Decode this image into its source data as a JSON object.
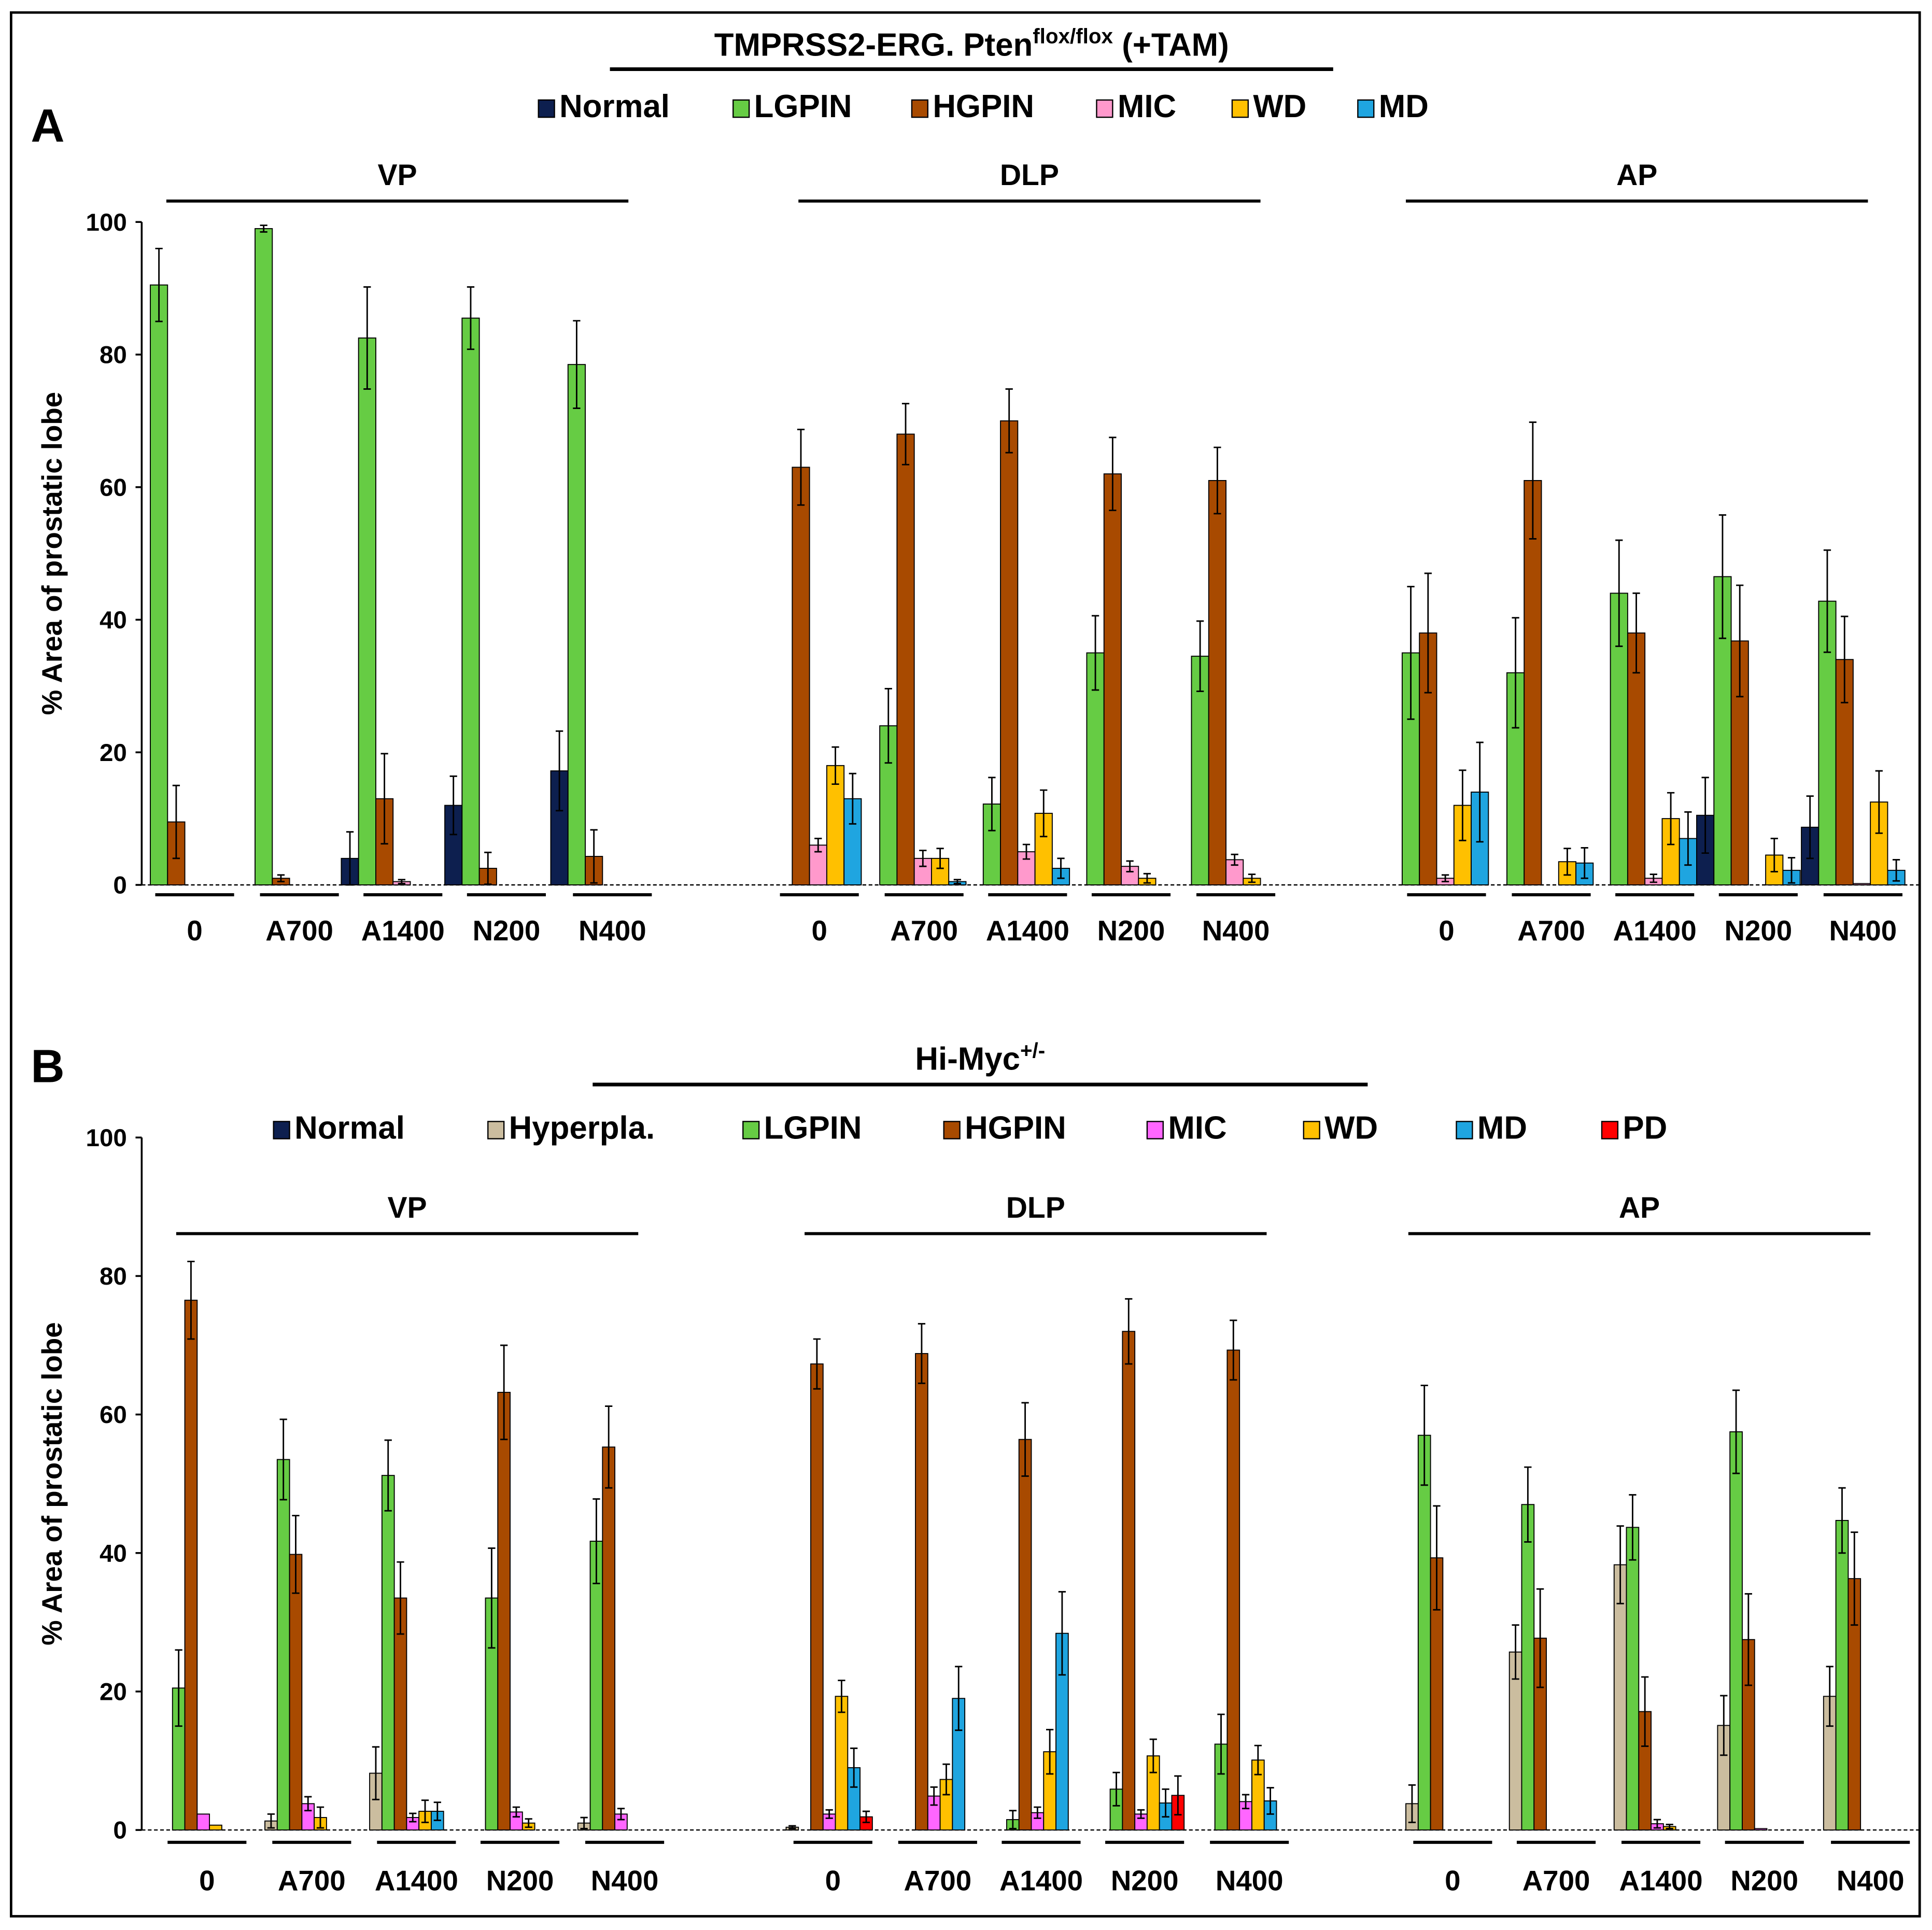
{
  "colors": {
    "Normal": "#0d1f4f",
    "Hyperpla.": "#cbbd9f",
    "LGPIN": "#66cc44",
    "HGPIN": "#a84a00",
    "MIC_A": "#ff99cc",
    "MIC_B": "#ff66ff",
    "WD": "#ffc000",
    "MD": "#1fa5e0",
    "PD": "#ff0000"
  },
  "chart_data": [
    {
      "type": "bar",
      "panel": "A",
      "title_main": "TMPRSS2-ERG. Pten",
      "title_sup": "flox/flox",
      "title_tail": " (+TAM)",
      "ylabel": "% Area of prostatic lobe",
      "ylim": [
        0,
        100
      ],
      "yticks": [
        "0",
        "20",
        "40",
        "60",
        "80",
        "100"
      ],
      "legend": [
        "Normal",
        "LGPIN",
        "HGPIN",
        "MIC",
        "WD",
        "MD"
      ],
      "categories": [
        "0",
        "A700",
        "A1400",
        "N200",
        "N400"
      ],
      "lobes": [
        {
          "name": "VP",
          "values": [
            [
              0,
              90.5,
              9.5,
              0,
              0,
              0
            ],
            [
              0,
              99,
              1,
              0,
              0,
              0
            ],
            [
              4,
              82.5,
              13,
              0.5,
              0,
              0
            ],
            [
              12,
              85.5,
              2.5,
              0,
              0,
              0
            ],
            [
              17.2,
              78.5,
              4.3,
              0,
              0,
              0
            ]
          ],
          "errors": [
            [
              0,
              5.5,
              5.5,
              0,
              0,
              0
            ],
            [
              0,
              0.5,
              0.5,
              0,
              0,
              0
            ],
            [
              4,
              7.7,
              6.8,
              0.3,
              0,
              0
            ],
            [
              4.4,
              4.7,
              2.4,
              0,
              0,
              0
            ],
            [
              6,
              6.6,
              4,
              0,
              0,
              0
            ]
          ]
        },
        {
          "name": "DLP",
          "values": [
            [
              0,
              0,
              63,
              6,
              18,
              13
            ],
            [
              0,
              24,
              68,
              4,
              4,
              0.5
            ],
            [
              0,
              12.2,
              70,
              5,
              10.8,
              2.5
            ],
            [
              0,
              35,
              62,
              2.8,
              1,
              0
            ],
            [
              0,
              34.5,
              61,
              3.8,
              1,
              0
            ]
          ],
          "errors": [
            [
              0,
              0,
              5.7,
              1,
              2.8,
              3.8
            ],
            [
              0,
              5.6,
              4.6,
              1.2,
              1.5,
              0.3
            ],
            [
              0,
              4,
              4.8,
              1.1,
              3.5,
              1.5
            ],
            [
              0,
              5.6,
              5.5,
              0.8,
              0.7,
              0
            ],
            [
              0,
              5.3,
              5,
              0.8,
              0.6,
              0
            ]
          ]
        },
        {
          "name": "AP",
          "values": [
            [
              0,
              35,
              38,
              1,
              12,
              14
            ],
            [
              0,
              32,
              61,
              0,
              3.5,
              3.3
            ],
            [
              0,
              44,
              38,
              1,
              10,
              7
            ],
            [
              10.5,
              46.5,
              36.8,
              0,
              4.5,
              2.2
            ],
            [
              8.7,
              42.8,
              34,
              0.2,
              12.5,
              2.2
            ]
          ],
          "errors": [
            [
              0,
              10,
              9,
              0.5,
              5.3,
              7.5
            ],
            [
              0,
              8.3,
              8.8,
              0,
              2,
              2.3
            ],
            [
              0,
              8,
              6,
              0.6,
              3.9,
              4
            ],
            [
              5.7,
              9.3,
              8.4,
              0,
              2.5,
              1.9
            ],
            [
              4.7,
              7.7,
              6.5,
              0,
              4.7,
              1.6
            ]
          ]
        }
      ]
    },
    {
      "type": "bar",
      "panel": "B",
      "title_main": "Hi-Myc",
      "title_sup": "+/-",
      "title_tail": "",
      "ylabel": "% Area of prostatic lobe",
      "ylim": [
        0,
        100
      ],
      "yticks": [
        "0",
        "20",
        "40",
        "60",
        "80",
        "100"
      ],
      "legend": [
        "Normal",
        "Hyperpla.",
        "LGPIN",
        "HGPIN",
        "MIC",
        "WD",
        "MD",
        "PD"
      ],
      "categories": [
        "0",
        "A700",
        "A1400",
        "N200",
        "N400"
      ],
      "lobes": [
        {
          "name": "VP",
          "values": [
            [
              0,
              0,
              20.5,
              76.5,
              2.3,
              0.7,
              0,
              0
            ],
            [
              0,
              1.3,
              53.5,
              39.8,
              3.8,
              1.8,
              0,
              0
            ],
            [
              0,
              8.2,
              51.2,
              33.5,
              1.8,
              2.7,
              2.7,
              0
            ],
            [
              0,
              0,
              33.5,
              63.2,
              2.6,
              1,
              0,
              0
            ],
            [
              0,
              1,
              41.7,
              55.3,
              2.3,
              0,
              0,
              0
            ]
          ],
          "errors": [
            [
              0,
              0,
              5.5,
              5.6,
              0,
              0,
              0,
              0
            ],
            [
              0,
              1,
              5.8,
              5.6,
              1,
              1.5,
              0,
              0
            ],
            [
              0,
              3.8,
              5.1,
              5.2,
              0.6,
              1.6,
              1.3,
              0
            ],
            [
              0,
              0,
              7.2,
              6.8,
              0.7,
              0.6,
              0,
              0
            ],
            [
              0,
              0.8,
              6.1,
              5.9,
              0.8,
              0,
              0,
              0
            ]
          ]
        },
        {
          "name": "DLP",
          "values": [
            [
              0,
              0.4,
              0,
              67.3,
              2.3,
              19.3,
              9,
              1.9
            ],
            [
              0,
              0,
              0,
              68.8,
              4.9,
              7.3,
              19,
              0
            ],
            [
              0,
              0,
              1.5,
              56.4,
              2.5,
              11.3,
              28.4,
              0
            ],
            [
              0,
              0,
              5.9,
              72,
              2.3,
              10.7,
              3.9,
              5
            ],
            [
              0,
              0,
              12.4,
              69.3,
              4.1,
              10.1,
              4.2,
              0
            ]
          ],
          "errors": [
            [
              0,
              0.2,
              0,
              3.6,
              0.6,
              2.3,
              2.8,
              0.8
            ],
            [
              0,
              0,
              0,
              4.3,
              1.3,
              2.2,
              4.6,
              0
            ],
            [
              0,
              0,
              1.3,
              5.3,
              0.8,
              3.2,
              6,
              0
            ],
            [
              0,
              0,
              2.4,
              4.7,
              0.6,
              2.4,
              2,
              2.8
            ],
            [
              0,
              0,
              4.3,
              4.3,
              1,
              2.1,
              1.9,
              0
            ]
          ]
        },
        {
          "name": "AP",
          "values": [
            [
              0,
              3.8,
              57,
              39.3,
              0,
              0,
              0,
              0
            ],
            [
              0,
              25.7,
              47,
              27.7,
              0,
              0,
              0,
              0
            ],
            [
              0,
              38.3,
              43.7,
              17.1,
              0.9,
              0.5,
              0,
              0
            ],
            [
              0,
              15.1,
              57.5,
              27.5,
              0.2,
              0,
              0,
              0
            ],
            [
              0,
              19.3,
              44.7,
              36.3,
              0,
              0,
              0,
              0
            ]
          ],
          "errors": [
            [
              0,
              2.7,
              7.2,
              7.5,
              0,
              0,
              0,
              0
            ],
            [
              0,
              3.9,
              5.4,
              7.1,
              0,
              0,
              0,
              0
            ],
            [
              0,
              5.6,
              4.7,
              5,
              0.6,
              0.3,
              0,
              0
            ],
            [
              0,
              4.3,
              6,
              6.6,
              0,
              0,
              0,
              0
            ],
            [
              0,
              4.3,
              4.7,
              6.7,
              0,
              0,
              0,
              0
            ]
          ]
        }
      ]
    }
  ]
}
